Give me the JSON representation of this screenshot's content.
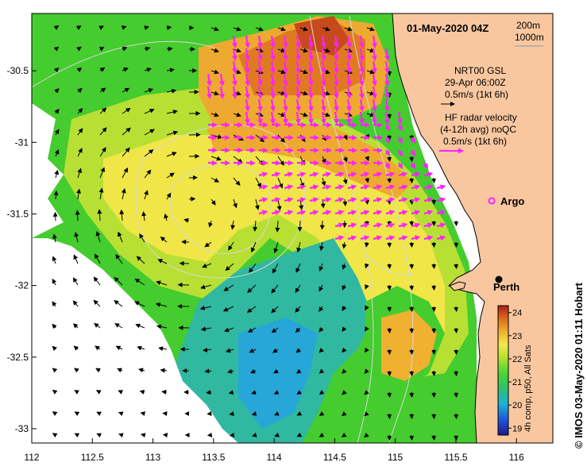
{
  "map": {
    "date_label": "01-May-2020 04Z",
    "depth_labels": [
      "200m",
      "1000m"
    ],
    "gsl_legend": [
      "NRT00 GSL",
      "29-Apr 06:00Z",
      "0.5m/s (1kt 6h)"
    ],
    "hf_legend": [
      "HF radar velocity",
      "(4-12h avg) noQC",
      "0.5m/s (1kt 6h)"
    ],
    "argo_label": "Argo",
    "city_label": "Perth",
    "colorbar_caption": "4h comp, p50, All Sats",
    "credit": "© IMOS 03-May-2020 01:11 Hobart",
    "x_ticks": [
      "112",
      "112.5",
      "113",
      "113.5",
      "114",
      "114.5",
      "115",
      "115.5",
      "116"
    ],
    "y_ticks": [
      "-30.5",
      "-31",
      "-31.5",
      "-32",
      "-32.5",
      "-33"
    ],
    "colorbar_ticks": [
      "24",
      "23",
      "22",
      "21",
      "20",
      "19"
    ],
    "lon_range": [
      112,
      116.3
    ],
    "lat_range": [
      -33.1,
      -30.1
    ],
    "sst_range": [
      18.7,
      24.3
    ],
    "colors": {
      "land": "#f9c79f",
      "arrow_gsl": "#000000",
      "arrow_hf": "#ff22ff",
      "argo": "#ff22ff"
    }
  }
}
